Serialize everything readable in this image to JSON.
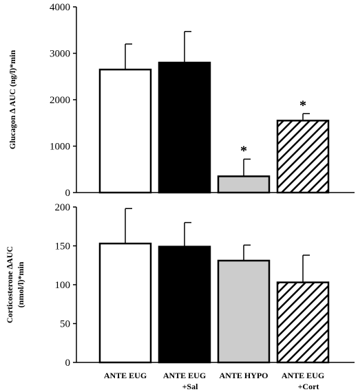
{
  "chart_data": [
    {
      "type": "bar",
      "ylabel": "Glucagon ∆ AUC (ng/l)*min",
      "ylim": [
        0,
        4000
      ],
      "yticks": [
        0,
        1000,
        2000,
        3000,
        4000
      ],
      "tick_labels": [
        "0",
        "1000",
        "2000",
        "3000",
        "4000"
      ],
      "categories": [
        "",
        "",
        "",
        ""
      ],
      "values": [
        2650,
        2800,
        350,
        1550
      ],
      "errors": [
        550,
        670,
        370,
        150
      ],
      "significance": [
        "",
        "",
        "*",
        "*"
      ],
      "fills": [
        "white",
        "black",
        "lightgray",
        "hatched"
      ],
      "grid": false
    },
    {
      "type": "bar",
      "ylabel": [
        "Corticosterone ∆AUC",
        "(nmol/l)*min"
      ],
      "ylim": [
        0,
        200
      ],
      "yticks": [
        0,
        50,
        100,
        150,
        200
      ],
      "tick_labels": [
        "0",
        "50",
        "100",
        "150",
        "200"
      ],
      "categories": [
        [
          "ANTE EUG"
        ],
        [
          "ANTE EUG",
          "+Sal"
        ],
        [
          "ANTE HYPO"
        ],
        [
          "ANTE EUG",
          "+Cort"
        ]
      ],
      "values": [
        153,
        149,
        131,
        103
      ],
      "errors": [
        45,
        31,
        20,
        35
      ],
      "significance": [
        "",
        "",
        "",
        ""
      ],
      "fills": [
        "white",
        "black",
        "lightgray",
        "hatched"
      ],
      "grid": false
    }
  ],
  "colors": {
    "white": "#ffffff",
    "black": "#000000",
    "lightgray": "#cccccc",
    "hatched": "diagonal-hatch"
  }
}
